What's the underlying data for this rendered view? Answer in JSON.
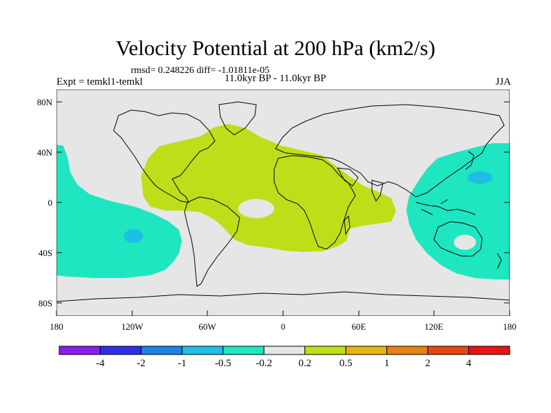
{
  "title": "Velocity Potential at 200 hPa (km2/s)",
  "stats_line": "rmsd= 0.248226 diff= -1.01811e-05",
  "period_line": "11.0kyr BP - 11.0kyr BP",
  "experiment": "Expt = temkl1-temkl",
  "season": "JJA",
  "lat_ticks": [
    "80N",
    "40N",
    "0",
    "40S",
    "80S"
  ],
  "lon_ticks": [
    "180",
    "120W",
    "60W",
    "0",
    "60E",
    "120E",
    "180"
  ],
  "colorbar": {
    "colors": [
      "#8a1ef0",
      "#2e2ee6",
      "#1e82e6",
      "#1ebee6",
      "#1ee6c0",
      "#e6e6e6",
      "#bede1a",
      "#e6b414",
      "#e68214",
      "#e64614",
      "#e61414"
    ],
    "labels": [
      "-4",
      "-2",
      "-1",
      "-0.5",
      "-0.2",
      "0.2",
      "0.5",
      "1",
      "2",
      "4"
    ]
  },
  "colors": {
    "positive_fill": "#bede1a",
    "negative_fill": "#1ee6c0",
    "strong_negative_fill": "#1ebee6",
    "background_fill": "#e6e6e6"
  }
}
